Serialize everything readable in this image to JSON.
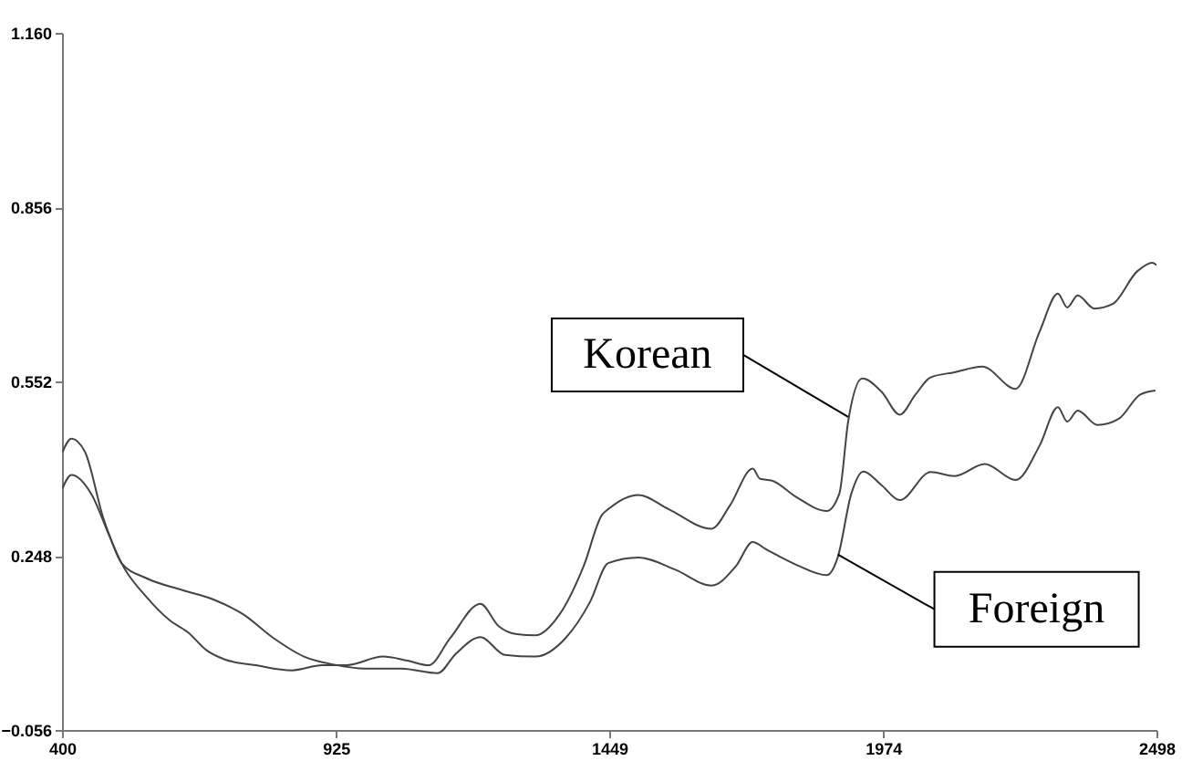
{
  "chart_data": {
    "type": "line",
    "xlim": [
      400,
      2498
    ],
    "xticks": [
      400,
      925,
      1449,
      1974,
      2498
    ],
    "ylim": [
      -0.056,
      1.16
    ],
    "yticks": [
      -0.056,
      0.248,
      0.552,
      0.856,
      {
        "value": 1.16,
        "label": "1.160"
      }
    ],
    "grid": false,
    "marker": "none",
    "line_style": "solid",
    "series": [
      {
        "color": "#444444",
        "x": [
          401,
          418,
          444,
          479,
          514,
          561,
          607,
          642,
          677,
          712,
          771,
          841,
          899,
          946,
          1015,
          1062,
          1103,
          1144,
          1202,
          1237,
          1272,
          1307,
          1354,
          1400,
          1435,
          1447,
          1505,
          1563,
          1645,
          1680,
          1724,
          1738,
          1761,
          1808,
          1866,
          1890,
          1907,
          1934,
          1971,
          2006,
          2036,
          2065,
          2111,
          2164,
          2228,
          2274,
          2309,
          2327,
          2347,
          2379,
          2414,
          2461,
          2490,
          2498
        ],
        "values": [
          0.429,
          0.452,
          0.429,
          0.314,
          0.235,
          0.177,
          0.135,
          0.114,
          0.083,
          0.067,
          0.057,
          0.048,
          0.057,
          0.057,
          0.072,
          0.065,
          0.057,
          0.104,
          0.164,
          0.125,
          0.111,
          0.109,
          0.146,
          0.23,
          0.319,
          0.329,
          0.354,
          0.329,
          0.295,
          0.335,
          0.4,
          0.382,
          0.379,
          0.35,
          0.326,
          0.356,
          0.482,
          0.557,
          0.534,
          0.494,
          0.529,
          0.559,
          0.568,
          0.578,
          0.539,
          0.639,
          0.705,
          0.681,
          0.702,
          0.679,
          0.687,
          0.744,
          0.759,
          0.755
        ]
      },
      {
        "color": "#444444",
        "x": [
          401,
          418,
          456,
          491,
          514,
          561,
          631,
          689,
          747,
          806,
          864,
          922,
          981,
          1050,
          1120,
          1155,
          1202,
          1249,
          1307,
          1365,
          1412,
          1447,
          1505,
          1575,
          1645,
          1692,
          1724,
          1750,
          1808,
          1866,
          1887,
          1913,
          1936,
          1971,
          2006,
          2065,
          2111,
          2169,
          2228,
          2274,
          2309,
          2327,
          2347,
          2385,
          2426,
          2467,
          2496
        ],
        "values": [
          0.366,
          0.389,
          0.356,
          0.282,
          0.235,
          0.209,
          0.188,
          0.172,
          0.146,
          0.104,
          0.072,
          0.058,
          0.051,
          0.051,
          0.043,
          0.077,
          0.106,
          0.075,
          0.072,
          0.104,
          0.167,
          0.235,
          0.245,
          0.224,
          0.196,
          0.23,
          0.272,
          0.259,
          0.232,
          0.214,
          0.245,
          0.356,
          0.395,
          0.371,
          0.345,
          0.394,
          0.387,
          0.408,
          0.38,
          0.44,
          0.507,
          0.482,
          0.501,
          0.476,
          0.487,
          0.529,
          0.536
        ]
      }
    ],
    "annotations": [
      {
        "text": "Korean",
        "x": 1907,
        "y": 0.49
      },
      {
        "text": "Foreign",
        "x": 1887,
        "y": 0.25
      }
    ]
  }
}
